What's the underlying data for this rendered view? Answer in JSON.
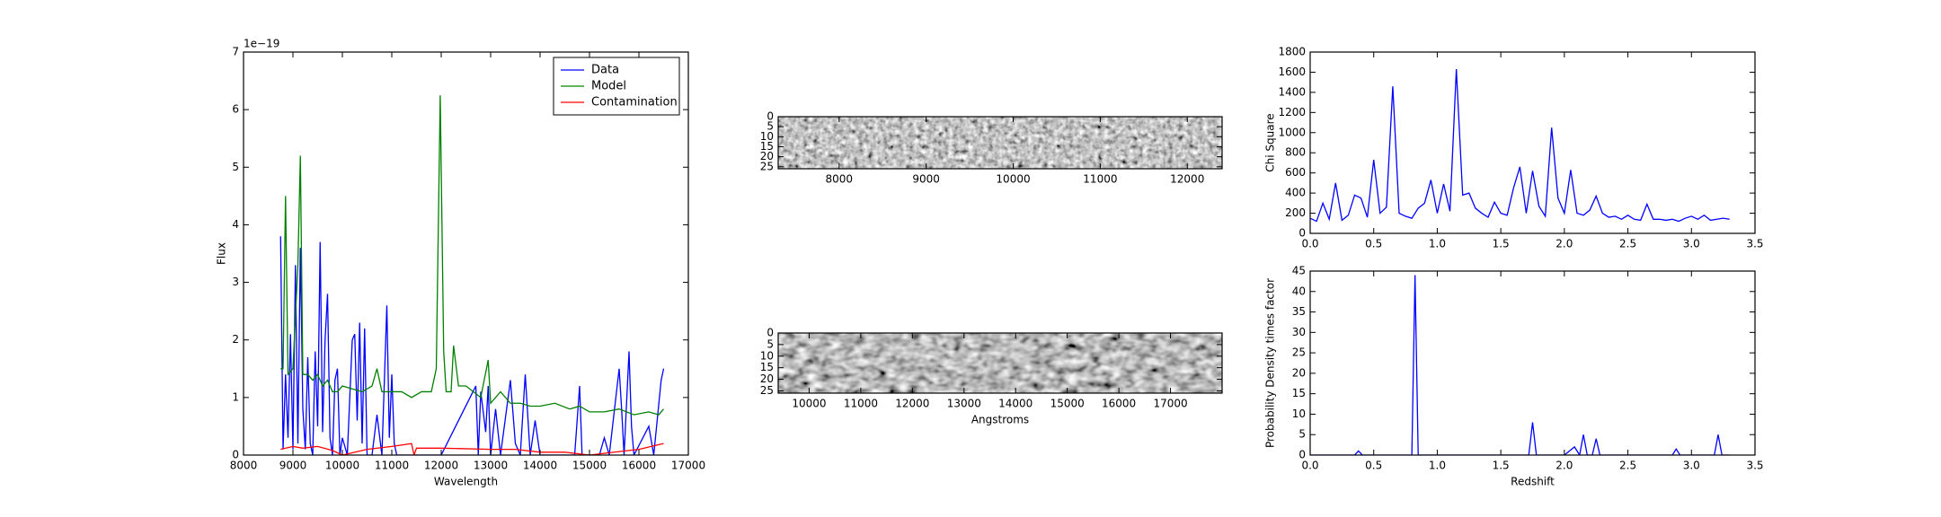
{
  "chart_data": [
    {
      "type": "line",
      "xlabel": "Wavelength",
      "ylabel": "Flux",
      "offset_label": "1e−19",
      "xlim": [
        8000,
        17000
      ],
      "xticks": [
        8000,
        9000,
        10000,
        11000,
        12000,
        13000,
        14000,
        15000,
        16000,
        17000
      ],
      "ylim": [
        0,
        7
      ],
      "yticks": [
        0,
        1,
        2,
        3,
        4,
        5,
        6,
        7
      ],
      "legend": "upper right",
      "series": [
        {
          "name": "Data",
          "color": "#0000ff",
          "x": [
            8750,
            8800,
            8850,
            8900,
            8950,
            9000,
            9050,
            9100,
            9150,
            9200,
            9250,
            9300,
            9350,
            9400,
            9450,
            9500,
            9550,
            9600,
            9650,
            9700,
            9750,
            9800,
            9850,
            9900,
            9950,
            10000,
            10100,
            10200,
            10250,
            10300,
            10350,
            10400,
            10450,
            10500,
            10600,
            10700,
            10800,
            10900,
            10950,
            11000,
            11050,
            11100,
            11400,
            12000,
            12700,
            12750,
            12800,
            12900,
            12950,
            13000,
            13100,
            13200,
            13400,
            13500,
            13600,
            13700,
            13800,
            13900,
            14000,
            14700,
            14800,
            14850,
            15200,
            15300,
            15400,
            15600,
            15650,
            15700,
            15800,
            15850,
            15900,
            16200,
            16300,
            16450,
            16500
          ],
          "values": [
            3.8,
            0.1,
            1.4,
            0.3,
            2.1,
            0.1,
            3.3,
            0.2,
            3.6,
            0.8,
            0.1,
            1.7,
            0.2,
            0.0,
            1.8,
            0.5,
            3.7,
            0.4,
            2.0,
            2.8,
            0.3,
            0.0,
            1.3,
            1.5,
            0.0,
            0.3,
            0.0,
            2.0,
            2.1,
            0.6,
            2.3,
            0.2,
            2.2,
            0.0,
            0.0,
            0.7,
            0.0,
            2.6,
            0.3,
            1.4,
            0.2,
            0.0,
            0.0,
            0.0,
            1.2,
            0.0,
            1.1,
            0.4,
            1.2,
            0.0,
            0.8,
            0.0,
            1.3,
            0.2,
            0.0,
            1.4,
            0.0,
            0.6,
            0.0,
            0.0,
            1.2,
            0.0,
            0.0,
            0.3,
            0.0,
            1.5,
            0.8,
            0.0,
            1.8,
            0.5,
            0.0,
            0.5,
            0.0,
            1.3,
            1.5
          ]
        },
        {
          "name": "Model",
          "color": "#008000",
          "x": [
            8750,
            8800,
            8850,
            8900,
            9000,
            9100,
            9150,
            9200,
            9300,
            9400,
            9500,
            9600,
            9700,
            9800,
            9900,
            10000,
            10200,
            10400,
            10600,
            10700,
            10800,
            11000,
            11200,
            11400,
            11600,
            11800,
            11900,
            11980,
            12050,
            12100,
            12200,
            12250,
            12350,
            12500,
            12800,
            12950,
            13000,
            13200,
            13400,
            13600,
            13800,
            14000,
            14300,
            14600,
            14800,
            15000,
            15300,
            15600,
            15900,
            16200,
            16400,
            16500
          ],
          "values": [
            1.5,
            1.5,
            4.5,
            1.4,
            1.5,
            3.3,
            5.2,
            1.4,
            1.4,
            1.3,
            1.4,
            1.2,
            1.3,
            1.1,
            1.1,
            1.2,
            1.15,
            1.1,
            1.2,
            1.5,
            1.1,
            1.1,
            1.1,
            1.0,
            1.1,
            1.1,
            1.5,
            6.25,
            1.8,
            1.1,
            1.1,
            1.9,
            1.2,
            1.2,
            1.0,
            1.65,
            0.9,
            1.1,
            0.9,
            0.9,
            0.85,
            0.85,
            0.9,
            0.8,
            0.85,
            0.75,
            0.75,
            0.8,
            0.7,
            0.75,
            0.7,
            0.8
          ]
        },
        {
          "name": "Contamination",
          "color": "#ff0000",
          "x": [
            8750,
            9000,
            9200,
            9500,
            9800,
            10000,
            10500,
            11000,
            11400,
            11450,
            11500,
            12000,
            13000,
            13500,
            14000,
            14500,
            15000,
            15500,
            16000,
            16500
          ],
          "values": [
            0.1,
            0.15,
            0.12,
            0.15,
            0.08,
            0.0,
            0.1,
            0.15,
            0.2,
            0.0,
            0.12,
            0.12,
            0.1,
            0.1,
            0.05,
            0.05,
            0.0,
            0.05,
            0.1,
            0.2
          ]
        }
      ]
    },
    {
      "type": "image",
      "xlim": [
        7300,
        12400
      ],
      "xticks": [
        8000,
        9000,
        10000,
        11000,
        12000
      ],
      "ylim": [
        26,
        0
      ],
      "yticks": [
        0,
        5,
        10,
        15,
        20,
        25
      ]
    },
    {
      "type": "image",
      "xlabel": "Angstroms",
      "xlim": [
        9400,
        18000
      ],
      "xticks": [
        10000,
        11000,
        12000,
        13000,
        14000,
        15000,
        16000,
        17000
      ],
      "ylim": [
        26,
        0
      ],
      "yticks": [
        0,
        5,
        10,
        15,
        20,
        25
      ]
    },
    {
      "type": "line",
      "ylabel": "Chi Square",
      "xlim": [
        0,
        3.5
      ],
      "xticks": [
        {
          "value": 0,
          "label": "0.0"
        },
        0.5,
        {
          "value": 1,
          "label": "1.0"
        },
        1.5,
        {
          "value": 2,
          "label": "2.0"
        },
        2.5,
        {
          "value": 3,
          "label": "3.0"
        },
        3.5
      ],
      "ylim": [
        0,
        1800
      ],
      "yticks": [
        0,
        200,
        400,
        600,
        800,
        1000,
        1200,
        1400,
        1600,
        1800
      ],
      "series": [
        {
          "color": "#0000ff",
          "x": [
            0,
            0.05,
            0.1,
            0.15,
            0.2,
            0.25,
            0.3,
            0.35,
            0.4,
            0.45,
            0.5,
            0.55,
            0.6,
            0.65,
            0.7,
            0.75,
            0.8,
            0.85,
            0.9,
            0.95,
            1.0,
            1.05,
            1.1,
            1.15,
            1.2,
            1.25,
            1.3,
            1.35,
            1.4,
            1.45,
            1.5,
            1.55,
            1.6,
            1.65,
            1.7,
            1.75,
            1.8,
            1.85,
            1.9,
            1.95,
            2.0,
            2.05,
            2.1,
            2.15,
            2.2,
            2.25,
            2.3,
            2.35,
            2.4,
            2.45,
            2.5,
            2.55,
            2.6,
            2.65,
            2.7,
            2.75,
            2.8,
            2.85,
            2.9,
            2.95,
            3.0,
            3.05,
            3.1,
            3.15,
            3.2,
            3.25,
            3.3
          ],
          "values": [
            150,
            120,
            300,
            140,
            500,
            130,
            180,
            380,
            350,
            160,
            730,
            200,
            260,
            1460,
            200,
            170,
            150,
            250,
            300,
            530,
            200,
            490,
            220,
            1630,
            380,
            400,
            250,
            200,
            160,
            310,
            200,
            180,
            450,
            660,
            200,
            620,
            270,
            170,
            1050,
            350,
            200,
            630,
            200,
            180,
            230,
            370,
            200,
            160,
            170,
            140,
            180,
            140,
            130,
            290,
            140,
            140,
            130,
            140,
            120,
            150,
            170,
            140,
            180,
            130,
            140,
            150,
            140
          ]
        }
      ]
    },
    {
      "type": "line",
      "xlabel": "Redshift",
      "ylabel": "Probability Density times factor",
      "xlim": [
        0,
        3.5
      ],
      "xticks": [
        {
          "value": 0,
          "label": "0.0"
        },
        0.5,
        {
          "value": 1,
          "label": "1.0"
        },
        1.5,
        {
          "value": 2,
          "label": "2.0"
        },
        2.5,
        {
          "value": 3,
          "label": "3.0"
        },
        3.5
      ],
      "ylim": [
        0,
        45
      ],
      "yticks": [
        0,
        5,
        10,
        15,
        20,
        25,
        30,
        35,
        40,
        45
      ],
      "series": [
        {
          "color": "#0000ff",
          "x": [
            0,
            0.35,
            0.38,
            0.41,
            0.8,
            0.825,
            0.85,
            1.72,
            1.75,
            1.78,
            2.0,
            2.08,
            2.12,
            2.15,
            2.18,
            2.22,
            2.25,
            2.28,
            2.85,
            2.88,
            2.91,
            3.18,
            3.21,
            3.24,
            3.3
          ],
          "values": [
            0,
            0,
            1,
            0,
            0,
            44,
            0,
            0,
            8,
            0,
            0,
            2,
            0,
            5,
            0,
            0,
            4,
            0,
            0,
            1.5,
            0,
            0,
            5,
            0,
            0
          ]
        }
      ]
    }
  ]
}
